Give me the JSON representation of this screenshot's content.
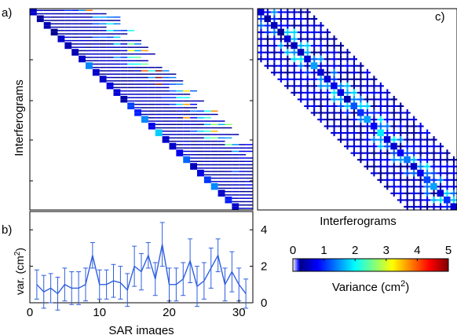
{
  "panels": {
    "a": {
      "label": "a)",
      "ylabel": "Interferograms"
    },
    "b": {
      "label": "b)",
      "xlabel": "SAR images",
      "ylabel_main": "var. (cm",
      "ylabel_sup": "2",
      "ylabel_close": ")"
    },
    "c": {
      "label": "c)",
      "xlabel": "Interferograms"
    }
  },
  "colorbar": {
    "label_main": "Variance (cm",
    "label_sup": "2",
    "label_close": ")",
    "range": [
      0,
      5
    ],
    "ticks": [
      "0",
      "1",
      "2",
      "3",
      "4",
      "5"
    ],
    "colormap": "jet-like (white at 0)"
  },
  "chart_data": [
    {
      "type": "heatmap",
      "panel": "a",
      "description_axis": "rows = interferograms, columns = SAR images",
      "n_images": 32,
      "n_interferograms": 60,
      "colorscale_range": [
        0,
        5
      ],
      "ylabel": "Interferograms"
    },
    {
      "type": "line",
      "panel": "b",
      "xlabel": "SAR images",
      "ylabel": "var. (cm2)",
      "xlim": [
        0,
        32
      ],
      "ylim": [
        0,
        5
      ],
      "xticks": [
        "0",
        "10",
        "20",
        "30"
      ],
      "yticks": [
        "0",
        "2",
        "4"
      ],
      "x": [
        1,
        2,
        3,
        4,
        5,
        6,
        7,
        8,
        9,
        10,
        11,
        12,
        13,
        14,
        15,
        16,
        17,
        18,
        19,
        20,
        21,
        22,
        23,
        24,
        25,
        26,
        27,
        28,
        29,
        30,
        31
      ],
      "values": [
        1.0,
        0.6,
        0.8,
        0.5,
        1.0,
        0.8,
        0.8,
        1.0,
        2.6,
        1.0,
        1.0,
        1.2,
        1.1,
        0.7,
        2.0,
        1.7,
        2.6,
        1.3,
        3.2,
        1.0,
        1.0,
        1.3,
        2.3,
        0.9,
        1.2,
        1.9,
        2.6,
        1.0,
        1.7,
        1.0,
        0.5
      ],
      "errors": [
        0.8,
        0.9,
        0.8,
        0.9,
        0.9,
        0.9,
        0.9,
        0.9,
        0.7,
        0.8,
        0.8,
        0.9,
        0.9,
        0.9,
        1.1,
        1.0,
        0.7,
        0.9,
        1.2,
        0.9,
        0.9,
        0.9,
        1.2,
        1.1,
        1.0,
        1.1,
        0.9,
        0.9,
        1.1,
        0.9,
        0.8
      ],
      "color": "#2e5fe0"
    },
    {
      "type": "heatmap",
      "panel": "c",
      "description_axis": "interferogram-by-interferogram covariance",
      "n_interferograms": 60,
      "colorscale_range": [
        0,
        5
      ],
      "xlabel": "Interferograms"
    }
  ]
}
